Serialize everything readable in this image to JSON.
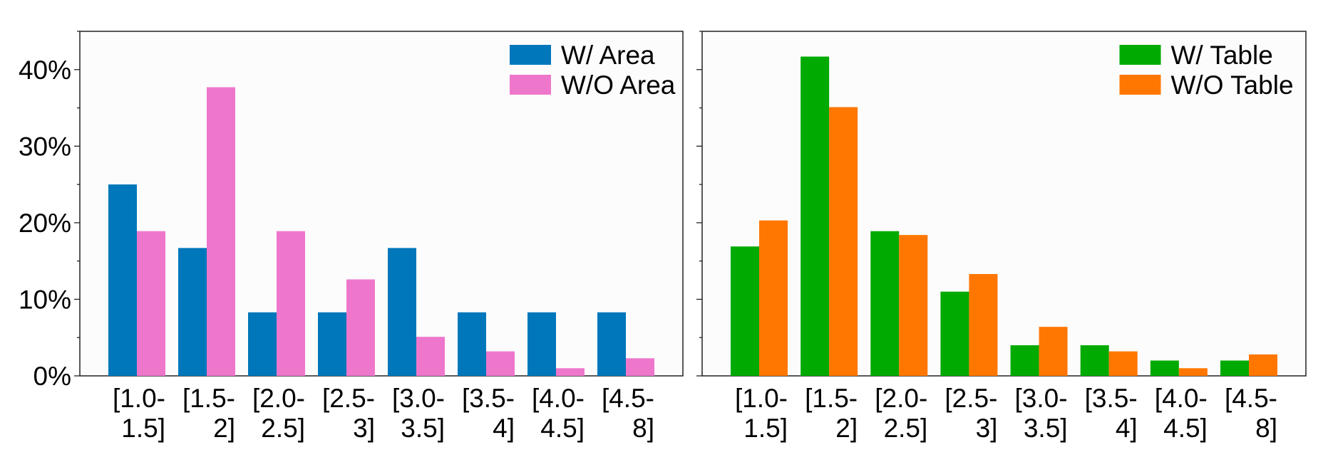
{
  "colors": {
    "plot_bg": "#fcfcfc",
    "w_area": "#0077bb",
    "wo_area": "#ee77cc",
    "w_table": "#00aa00",
    "wo_table": "#ff7700"
  },
  "chart_data": [
    {
      "type": "bar",
      "categories": [
        "[1.0-\n1.5]",
        "[1.5-\n2]",
        "[2.0-\n2.5]",
        "[2.5-\n3]",
        "[3.0-\n3.5]",
        "[3.5-\n4]",
        "[4.0-\n4.5]",
        "[4.5-\n8]"
      ],
      "category_lines": [
        [
          "[1.0-",
          "1.5]"
        ],
        [
          "[1.5-",
          "2]"
        ],
        [
          "[2.0-",
          "2.5]"
        ],
        [
          "[2.5-",
          "3]"
        ],
        [
          "[3.0-",
          "3.5]"
        ],
        [
          "[3.5-",
          "4]"
        ],
        [
          "[4.0-",
          "4.5]"
        ],
        [
          "[4.5-",
          "8]"
        ]
      ],
      "series": [
        {
          "name": "W/ Area",
          "color": "#0077bb",
          "values": [
            25.0,
            16.7,
            8.3,
            8.3,
            16.7,
            8.3,
            8.3,
            8.3
          ]
        },
        {
          "name": "W/O Area",
          "color": "#ee77cc",
          "values": [
            18.9,
            37.7,
            18.9,
            12.6,
            5.1,
            3.2,
            1.0,
            2.3
          ]
        }
      ],
      "y_ticks": [
        0,
        10,
        20,
        30,
        40
      ],
      "y_tick_labels": [
        "0%",
        "10%",
        "20%",
        "30%",
        "40%"
      ],
      "ylim": [
        0,
        45
      ],
      "legend_position": "top-right",
      "grid": false
    },
    {
      "type": "bar",
      "categories": [
        "[1.0-\n1.5]",
        "[1.5-\n2]",
        "[2.0-\n2.5]",
        "[2.5-\n3]",
        "[3.0-\n3.5]",
        "[3.5-\n4]",
        "[4.0-\n4.5]",
        "[4.5-\n8]"
      ],
      "category_lines": [
        [
          "[1.0-",
          "1.5]"
        ],
        [
          "[1.5-",
          "2]"
        ],
        [
          "[2.0-",
          "2.5]"
        ],
        [
          "[2.5-",
          "3]"
        ],
        [
          "[3.0-",
          "3.5]"
        ],
        [
          "[3.5-",
          "4]"
        ],
        [
          "[4.0-",
          "4.5]"
        ],
        [
          "[4.5-",
          "8]"
        ]
      ],
      "series": [
        {
          "name": "W/ Table",
          "color": "#00aa00",
          "values": [
            16.9,
            41.7,
            18.9,
            11.0,
            4.0,
            4.0,
            2.0,
            2.0
          ]
        },
        {
          "name": "W/O Table",
          "color": "#ff7700",
          "values": [
            20.3,
            35.1,
            18.4,
            13.3,
            6.4,
            3.2,
            1.0,
            2.8
          ]
        }
      ],
      "y_ticks": [
        0,
        10,
        20,
        30,
        40
      ],
      "y_tick_labels": [],
      "ylim": [
        0,
        45
      ],
      "legend_position": "top-right",
      "grid": false
    }
  ]
}
